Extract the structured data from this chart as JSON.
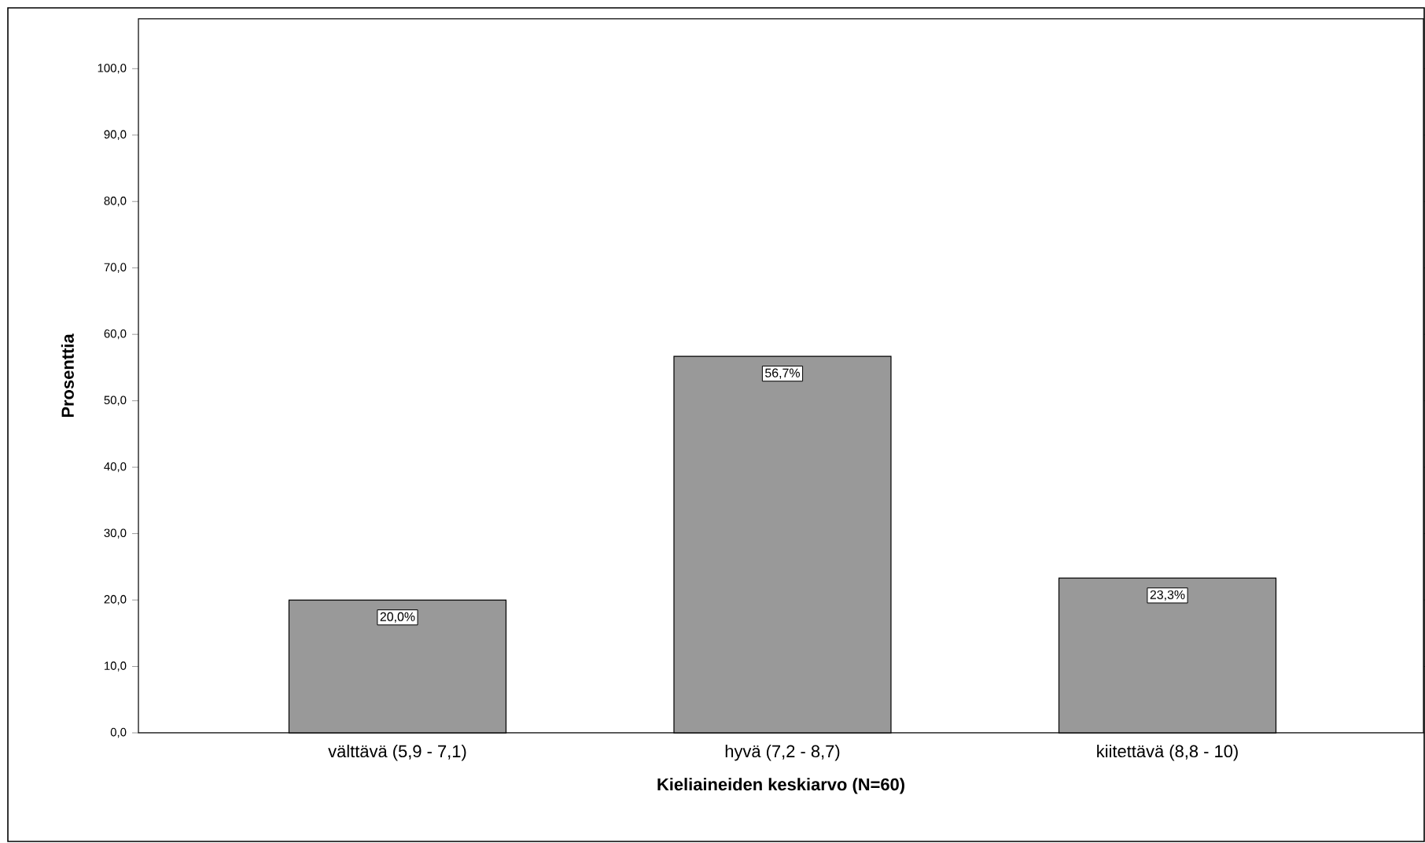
{
  "chart_data": {
    "type": "bar",
    "xlabel": "Kieliaineiden keskiarvo (N=60)",
    "ylabel": "Prosenttia",
    "categories": [
      "välttävä (5,9 - 7,1)",
      "hyvä (7,2 - 8,7)",
      "kiitettävä (8,8 - 10)"
    ],
    "values": [
      20.0,
      56.7,
      23.3
    ],
    "value_labels": [
      "20,0%",
      "56,7%",
      "23,3%"
    ],
    "color": "#999999",
    "ylim": [
      0,
      107.5
    ],
    "yticks": [
      {
        "value": 0,
        "label": "0,0"
      },
      {
        "value": 10,
        "label": "10,0"
      },
      {
        "value": 20,
        "label": "20,0"
      },
      {
        "value": 30,
        "label": "30,0"
      },
      {
        "value": 40,
        "label": "40,0"
      },
      {
        "value": 50,
        "label": "50,0"
      },
      {
        "value": 60,
        "label": "60,0"
      },
      {
        "value": 70,
        "label": "70,0"
      },
      {
        "value": 80,
        "label": "80,0"
      },
      {
        "value": 90,
        "label": "90,0"
      },
      {
        "value": 100,
        "label": "100,0"
      }
    ],
    "grid": false
  }
}
